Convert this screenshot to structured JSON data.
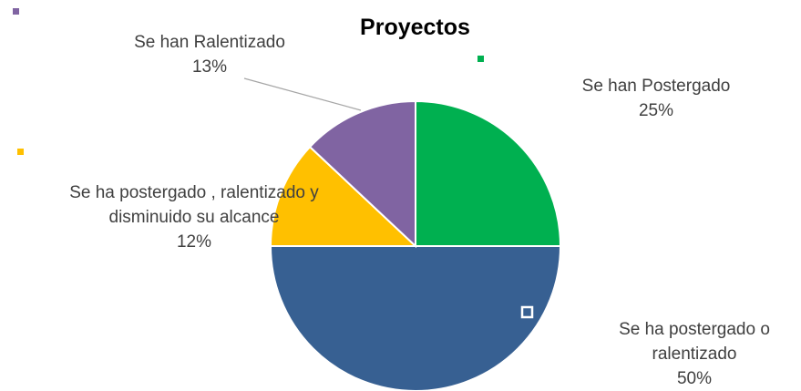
{
  "chart_data": {
    "type": "pie",
    "title": "Proyectos",
    "categories": [
      "Se han Postergado",
      "Se ha postergado o ralentizado",
      "Se ha postergado , ralentizado y disminuido su alcance",
      "Se han Ralentizado"
    ],
    "values": [
      25,
      50,
      12,
      13
    ],
    "value_labels": [
      "25%",
      "50%",
      "12%",
      "13%"
    ],
    "colors": [
      "#00b050",
      "#376092",
      "#ffc000",
      "#8064a2"
    ]
  }
}
